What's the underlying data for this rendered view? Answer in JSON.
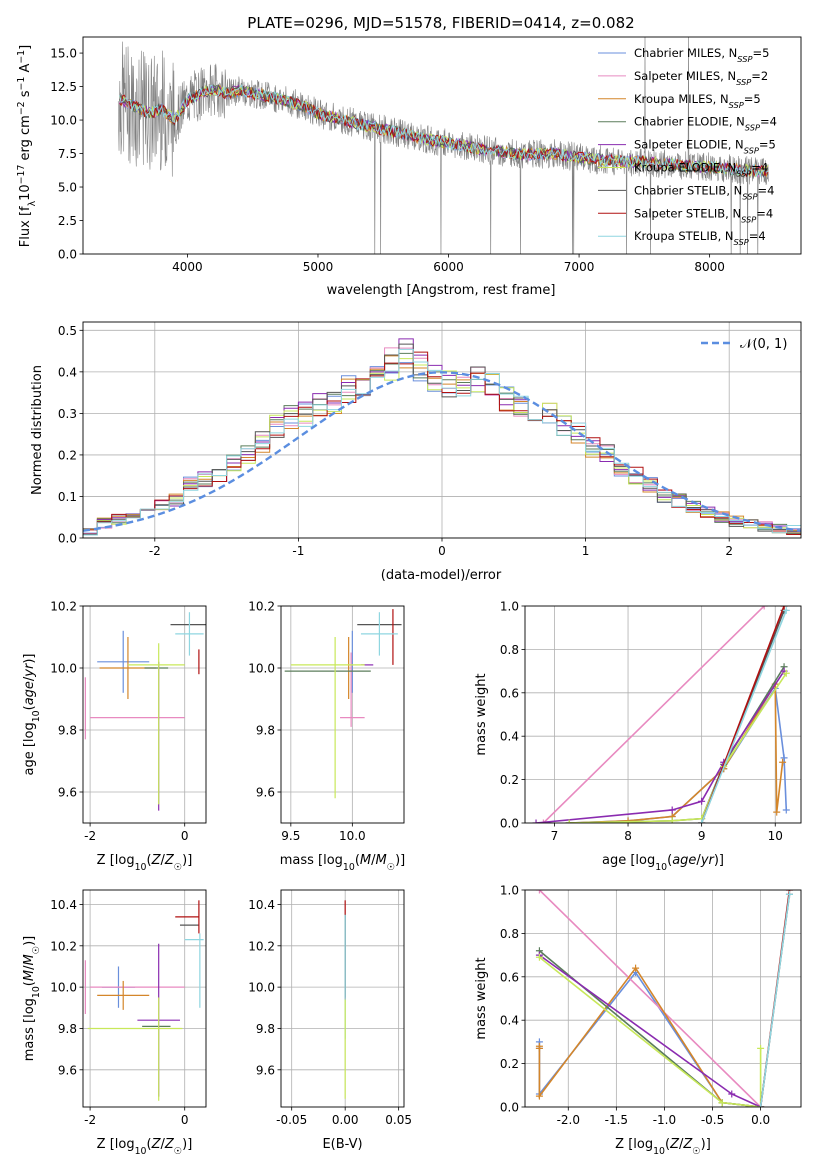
{
  "colors": {
    "Chabrier MILES": "#6a8fdc",
    "Salpeter MILES": "#e88ac0",
    "Kroupa MILES": "#d4862a",
    "Chabrier ELODIE": "#5b7d5b",
    "Salpeter ELODIE": "#8a2bb0",
    "Kroupa ELODIE": "#c8e85a",
    "Chabrier STELIB": "#555555",
    "Salpeter STELIB": "#b01010",
    "Kroupa STELIB": "#8fd6e0",
    "data": "#808080",
    "normal": "#5b8ee0"
  },
  "chart_data": [
    {
      "id": "spectrum",
      "type": "line",
      "title": "PLATE=0296, MJD=51578, FIBERID=0414, z=0.082",
      "xlabel": "wavelength [Angstrom, rest frame]",
      "ylabel": "Flux [f_λ10^-17 erg cm^-2 s^-1 A^-1]",
      "xlim": [
        3200,
        8700
      ],
      "ylim": [
        0,
        16.2
      ],
      "xticks": [
        4000,
        5000,
        6000,
        7000,
        8000
      ],
      "yticks": [
        0.0,
        2.5,
        5.0,
        7.5,
        10.0,
        12.5,
        15.0
      ],
      "legend_location": "upper right",
      "legend": [
        {
          "name": "Chabrier MILES",
          "nssp": "5"
        },
        {
          "name": "Salpeter MILES",
          "nssp": "2"
        },
        {
          "name": "Kroupa MILES",
          "nssp": "5"
        },
        {
          "name": "Chabrier ELODIE",
          "nssp": "4"
        },
        {
          "name": "Salpeter ELODIE",
          "nssp": "5"
        },
        {
          "name": "Kroupa ELODIE",
          "nssp": "4"
        },
        {
          "name": "Chabrier STELIB",
          "nssp": "4"
        },
        {
          "name": "Salpeter STELIB",
          "nssp": "4"
        },
        {
          "name": "Kroupa STELIB",
          "nssp": "4"
        }
      ],
      "data_continuum": {
        "x": [
          3500,
          3600,
          3700,
          3800,
          3900,
          4000,
          4100,
          4200,
          4300,
          4400,
          4500,
          4600,
          4700,
          4800,
          4900,
          5000,
          5200,
          5400,
          5600,
          5800,
          6000,
          6200,
          6400,
          6600,
          6800,
          7000,
          7200,
          7400,
          7600,
          7800,
          8000,
          8200,
          8400
        ],
        "y": [
          11.5,
          11.0,
          10.5,
          10.8,
          10.0,
          11.5,
          12.0,
          12.3,
          12.0,
          12.2,
          12.0,
          11.8,
          11.6,
          11.3,
          11.0,
          10.5,
          10.0,
          9.5,
          9.1,
          8.6,
          8.3,
          7.9,
          7.6,
          7.4,
          7.5,
          7.2,
          7.0,
          6.9,
          6.8,
          6.6,
          6.5,
          6.3,
          6.2
        ]
      }
    },
    {
      "id": "residuals",
      "type": "step",
      "xlabel": "(data-model)/error",
      "ylabel": "Normed distribution",
      "xlim": [
        -2.5,
        2.5
      ],
      "ylim": [
        0,
        0.52
      ],
      "xticks": [
        -2,
        -1,
        0,
        1,
        2
      ],
      "yticks": [
        0.0,
        0.1,
        0.2,
        0.3,
        0.4,
        0.5
      ],
      "grid": true,
      "legend_location": "upper right",
      "legend_label": "𝒩(0, 1)",
      "bins_edges_range": [
        -2.5,
        2.5
      ],
      "base_hist": [
        0.018,
        0.035,
        0.045,
        0.06,
        0.07,
        0.08,
        0.09,
        0.13,
        0.14,
        0.155,
        0.18,
        0.2,
        0.23,
        0.27,
        0.29,
        0.3,
        0.32,
        0.33,
        0.36,
        0.37,
        0.39,
        0.42,
        0.44,
        0.41,
        0.38,
        0.37,
        0.36,
        0.38,
        0.38,
        0.34,
        0.32,
        0.31,
        0.3,
        0.27,
        0.25,
        0.22,
        0.2,
        0.17,
        0.15,
        0.13,
        0.1,
        0.09,
        0.075,
        0.06,
        0.05,
        0.04,
        0.032,
        0.027,
        0.022,
        0.02
      ]
    },
    {
      "id": "age-vs-Z",
      "type": "errorbar",
      "xlabel": "Z [log10(Z/Z☉)]",
      "ylabel": "age  [log10(age/yr)]",
      "xlim": [
        -2.15,
        0.45
      ],
      "ylim": [
        9.5,
        10.2
      ],
      "xticks": [
        -2,
        0
      ],
      "yticks": [
        9.6,
        9.8,
        10.0,
        10.2
      ],
      "grid": true,
      "points": [
        {
          "series": "Chabrier MILES",
          "x": -1.3,
          "xerr": 0.55,
          "y": 10.02,
          "yerr": 0.1
        },
        {
          "series": "Salpeter MILES",
          "x": -1.0,
          "xerr": 1.0,
          "y": 9.84,
          "yerr": 0.0
        },
        {
          "series": "Salpeter MILES",
          "x": -2.1,
          "xerr": 0.0,
          "y": 9.87,
          "yerr": 0.1
        },
        {
          "series": "Kroupa MILES",
          "x": -1.2,
          "xerr": 0.6,
          "y": 10.0,
          "yerr": 0.1
        },
        {
          "series": "Chabrier ELODIE",
          "x": -0.6,
          "xerr": 0.25,
          "y": 10.0,
          "yerr": 0.0
        },
        {
          "series": "Salpeter ELODIE",
          "x": -0.55,
          "xerr": 0.0,
          "y": 9.78,
          "yerr": 0.24
        },
        {
          "series": "Kroupa ELODIE",
          "x": -0.6,
          "xerr": 0.6,
          "y": 10.01,
          "yerr": 0.0
        },
        {
          "series": "Kroupa ELODIE",
          "x": -0.55,
          "xerr": 0.0,
          "y": 9.82,
          "yerr": 0.26
        },
        {
          "series": "Chabrier STELIB",
          "x": 0.1,
          "xerr": 0.4,
          "y": 10.14,
          "yerr": 0.0
        },
        {
          "series": "Salpeter STELIB",
          "x": 0.3,
          "xerr": 0.0,
          "y": 10.02,
          "yerr": 0.04
        },
        {
          "series": "Kroupa STELIB",
          "x": 0.1,
          "xerr": 0.3,
          "y": 10.11,
          "yerr": 0.07
        }
      ]
    },
    {
      "id": "age-vs-mass",
      "type": "errorbar",
      "xlabel": "mass [log10(M/M☉)]",
      "ylabel": "",
      "xlim": [
        9.42,
        10.42
      ],
      "ylim": [
        9.5,
        10.2
      ],
      "xticks": [
        9.5,
        10.0
      ],
      "yticks": [
        9.6,
        9.8,
        10.0,
        10.2
      ],
      "grid": true,
      "points": [
        {
          "series": "Chabrier MILES",
          "x": 10.0,
          "xerr": 0.0,
          "y": 10.02,
          "yerr": 0.1
        },
        {
          "series": "Salpeter MILES",
          "x": 10.0,
          "xerr": 0.1,
          "y": 9.84,
          "yerr": 0.0
        },
        {
          "series": "Salpeter MILES",
          "x": 9.99,
          "xerr": 0.0,
          "y": 9.93,
          "yerr": 0.12
        },
        {
          "series": "Kroupa MILES",
          "x": 9.97,
          "xerr": 0.0,
          "y": 10.0,
          "yerr": 0.1
        },
        {
          "series": "Chabrier ELODIE",
          "x": 9.8,
          "xerr": 0.35,
          "y": 9.99,
          "yerr": 0.0
        },
        {
          "series": "Salpeter ELODIE",
          "x": 10.12,
          "xerr": 0.05,
          "y": 10.01,
          "yerr": 0.0
        },
        {
          "series": "Kroupa ELODIE",
          "x": 9.8,
          "xerr": 0.3,
          "y": 10.01,
          "yerr": 0.0
        },
        {
          "series": "Kroupa ELODIE",
          "x": 9.86,
          "xerr": 0.0,
          "y": 9.84,
          "yerr": 0.26
        },
        {
          "series": "Chabrier STELIB",
          "x": 10.22,
          "xerr": 0.18,
          "y": 10.14,
          "yerr": 0.0
        },
        {
          "series": "Salpeter STELIB",
          "x": 10.33,
          "xerr": 0.0,
          "y": 10.1,
          "yerr": 0.09
        },
        {
          "series": "Kroupa STELIB",
          "x": 10.22,
          "xerr": 0.15,
          "y": 10.11,
          "yerr": 0.07
        }
      ]
    },
    {
      "id": "mass-weight-vs-age",
      "type": "line",
      "xlabel": "age  [log10(age/yr)]",
      "ylabel": "mass weight",
      "xlim": [
        6.6,
        10.35
      ],
      "ylim": [
        0,
        1.0
      ],
      "xticks": [
        7,
        8,
        9,
        10
      ],
      "yticks": [
        0.0,
        0.2,
        0.4,
        0.6,
        0.8,
        1.0
      ],
      "grid": true,
      "series": [
        {
          "name": "Chabrier MILES",
          "x": [
            7.2,
            8.0,
            8.6,
            9.3,
            10.0,
            10.12,
            10.15
          ],
          "y": [
            0.0,
            0.01,
            0.03,
            0.25,
            0.62,
            0.3,
            0.06
          ]
        },
        {
          "name": "Salpeter MILES",
          "x": [
            6.85,
            9.85
          ],
          "y": [
            0.0,
            1.0
          ]
        },
        {
          "name": "Kroupa MILES",
          "x": [
            7.2,
            8.0,
            8.6,
            9.3,
            10.0,
            10.02,
            10.1
          ],
          "y": [
            0.0,
            0.01,
            0.03,
            0.25,
            0.64,
            0.05,
            0.28
          ]
        },
        {
          "name": "Chabrier ELODIE",
          "x": [
            7.2,
            8.6,
            9.0,
            9.3,
            10.12
          ],
          "y": [
            0.0,
            0.01,
            0.02,
            0.27,
            0.72
          ]
        },
        {
          "name": "Salpeter ELODIE",
          "x": [
            6.75,
            8.6,
            9.0,
            9.3,
            10.12
          ],
          "y": [
            0.0,
            0.06,
            0.1,
            0.28,
            0.7
          ]
        },
        {
          "name": "Kroupa ELODIE",
          "x": [
            7.2,
            8.6,
            9.0,
            9.3,
            10.15
          ],
          "y": [
            0.0,
            0.01,
            0.02,
            0.26,
            0.69
          ]
        },
        {
          "name": "Chabrier STELIB",
          "x": [
            9.0,
            10.12
          ],
          "y": [
            0.0,
            0.98
          ]
        },
        {
          "name": "Salpeter STELIB",
          "x": [
            9.0,
            10.12
          ],
          "y": [
            0.0,
            1.0
          ]
        },
        {
          "name": "Kroupa STELIB",
          "x": [
            9.0,
            10.15
          ],
          "y": [
            0.0,
            0.98
          ]
        }
      ]
    },
    {
      "id": "mass-vs-Z",
      "type": "errorbar",
      "xlabel": "Z [log10(Z/Z☉)]",
      "ylabel": "mass [log10(M/M☉)]",
      "xlim": [
        -2.15,
        0.45
      ],
      "ylim": [
        9.42,
        10.47
      ],
      "xticks": [
        -2,
        0
      ],
      "yticks": [
        9.6,
        9.8,
        10.0,
        10.2,
        10.4
      ],
      "grid": true,
      "points": [
        {
          "series": "Chabrier MILES",
          "x": -1.4,
          "xerr": 0.35,
          "y": 10.0,
          "yerr": 0.1
        },
        {
          "series": "Salpeter MILES",
          "x": -1.0,
          "xerr": 1.0,
          "y": 10.0,
          "yerr": 0.0
        },
        {
          "series": "Salpeter MILES",
          "x": -2.1,
          "xerr": 0.0,
          "y": 10.0,
          "yerr": 0.13
        },
        {
          "series": "Kroupa MILES",
          "x": -1.3,
          "xerr": 0.55,
          "y": 9.96,
          "yerr": 0.07
        },
        {
          "series": "Chabrier ELODIE",
          "x": -0.6,
          "xerr": 0.3,
          "y": 9.81,
          "yerr": 0.0
        },
        {
          "series": "Salpeter ELODIE",
          "x": -0.55,
          "xerr": 0.45,
          "y": 9.84,
          "yerr": 0.37
        },
        {
          "series": "Kroupa ELODIE",
          "x": -1.05,
          "xerr": 1.0,
          "y": 9.8,
          "yerr": 0.0
        },
        {
          "series": "Kroupa ELODIE",
          "x": -0.55,
          "xerr": 0.0,
          "y": 9.7,
          "yerr": 0.25
        },
        {
          "series": "Chabrier STELIB",
          "x": 0.1,
          "xerr": 0.2,
          "y": 10.3,
          "yerr": 0.0
        },
        {
          "series": "Salpeter STELIB",
          "x": 0.05,
          "xerr": 0.25,
          "y": 10.34,
          "yerr": 0.0
        },
        {
          "series": "Salpeter STELIB",
          "x": 0.3,
          "xerr": 0.0,
          "y": 10.34,
          "yerr": 0.08
        },
        {
          "series": "Kroupa STELIB",
          "x": 0.2,
          "xerr": 0.2,
          "y": 10.23,
          "yerr": 0.0
        },
        {
          "series": "Kroupa STELIB",
          "x": 0.32,
          "xerr": 0.0,
          "y": 10.08,
          "yerr": 0.18
        }
      ]
    },
    {
      "id": "mass-vs-EBV",
      "type": "errorbar",
      "xlabel": "E(B-V)",
      "ylabel": "",
      "xlim": [
        -0.06,
        0.055
      ],
      "ylim": [
        9.42,
        10.47
      ],
      "xticks": [
        -0.05,
        0.0,
        0.05
      ],
      "yticks": [
        9.6,
        9.8,
        10.0,
        10.2,
        10.4
      ],
      "grid": true,
      "points": [
        {
          "series": "Salpeter STELIB",
          "x": 0.0,
          "xerr": 0.0,
          "y": 10.18,
          "yerr": 0.24
        },
        {
          "series": "Chabrier STELIB",
          "x": 0.0,
          "xerr": 0.0,
          "y": 10.15,
          "yerr": 0.2
        },
        {
          "series": "Kroupa STELIB",
          "x": 0.0,
          "xerr": 0.0,
          "y": 10.05,
          "yerr": 0.3
        },
        {
          "series": "Kroupa ELODIE",
          "x": 0.0,
          "xerr": 0.0,
          "y": 9.7,
          "yerr": 0.24
        }
      ]
    },
    {
      "id": "mass-weight-vs-Z",
      "type": "line",
      "xlabel": "Z [log10(Z/Z☉)]",
      "ylabel": "mass weight",
      "xlim": [
        -2.45,
        0.42
      ],
      "ylim": [
        0,
        1.0
      ],
      "xticks": [
        -2.0,
        -1.5,
        -1.0,
        -0.5,
        0.0
      ],
      "yticks": [
        0.0,
        0.2,
        0.4,
        0.6,
        0.8,
        1.0
      ],
      "grid": true,
      "series": [
        {
          "name": "Chabrier MILES",
          "x": [
            -2.3,
            -2.3,
            -2.3,
            -1.3,
            -0.4,
            0.0
          ],
          "y": [
            0.3,
            0.27,
            0.06,
            0.62,
            0.02,
            0.0
          ]
        },
        {
          "name": "Salpeter MILES",
          "x": [
            -2.3,
            0.0
          ],
          "y": [
            1.0,
            0.0
          ]
        },
        {
          "name": "Kroupa MILES",
          "x": [
            -2.3,
            -2.3,
            -2.3,
            -1.3,
            -0.4,
            0.0
          ],
          "y": [
            0.28,
            0.27,
            0.05,
            0.64,
            0.02,
            0.0
          ]
        },
        {
          "name": "Chabrier ELODIE",
          "x": [
            -2.3,
            -0.4,
            0.0
          ],
          "y": [
            0.72,
            0.02,
            0.0
          ]
        },
        {
          "name": "Salpeter ELODIE",
          "x": [
            -2.3,
            -0.3,
            0.0
          ],
          "y": [
            0.7,
            0.06,
            0.0
          ]
        },
        {
          "name": "Kroupa ELODIE",
          "x": [
            -2.3,
            -0.4,
            0.0,
            0.0
          ],
          "y": [
            0.69,
            0.02,
            0.0,
            0.27
          ]
        },
        {
          "name": "Chabrier STELIB",
          "x": [
            0.0,
            0.3
          ],
          "y": [
            0.0,
            0.98
          ]
        },
        {
          "name": "Salpeter STELIB",
          "x": [
            0.0,
            0.3
          ],
          "y": [
            0.0,
            1.0
          ]
        },
        {
          "name": "Kroupa STELIB",
          "x": [
            0.0,
            0.3
          ],
          "y": [
            0.0,
            0.98
          ]
        }
      ]
    }
  ]
}
